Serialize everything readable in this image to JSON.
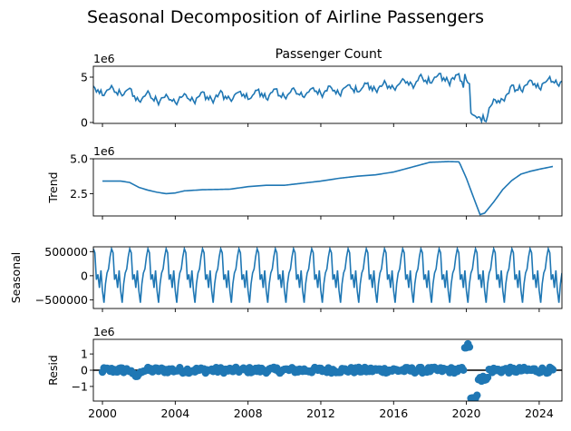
{
  "chart_data": {
    "type": "line",
    "title": "Seasonal Decomposition of Airline Passengers",
    "x_ticks": [
      "2000",
      "2004",
      "2008",
      "2012",
      "2016",
      "2020",
      "2024"
    ],
    "xlim": [
      1999.5,
      2025.25
    ],
    "color": "#1f77b4",
    "panels": [
      {
        "id": "observed",
        "title": "Passenger Count",
        "ylabel": "",
        "offset_text": "1e6",
        "ylim": [
          -0.1,
          6.2
        ],
        "y_ticks": [
          0,
          5
        ],
        "y_tick_labels": [
          "0",
          "5"
        ],
        "style": "line",
        "x_start": 1999.5,
        "x_end": 2025.25,
        "series": "observed"
      },
      {
        "id": "trend",
        "title": "",
        "ylabel": "Trend",
        "offset_text": "1e6",
        "ylim": [
          0.9,
          5.0
        ],
        "y_ticks": [
          2.5,
          5.0
        ],
        "y_tick_labels": [
          "2.5",
          "5.0"
        ],
        "style": "line",
        "x_start": 2000.0,
        "x_end": 2024.75,
        "series": "trend"
      },
      {
        "id": "seasonal",
        "title": "",
        "ylabel": "Seasonal",
        "offset_text": "",
        "ylim": [
          -680000,
          600000
        ],
        "y_ticks": [
          -500000,
          0,
          500000
        ],
        "y_tick_labels": [
          "−500000",
          "0",
          "500000"
        ],
        "style": "line",
        "x_start": 1999.5,
        "x_end": 2025.25,
        "series": "seasonal"
      },
      {
        "id": "resid",
        "title": "",
        "ylabel": "Resid",
        "offset_text": "1e6",
        "ylim": [
          -1.9,
          1.9
        ],
        "y_ticks": [
          -1,
          0,
          1
        ],
        "y_tick_labels": [
          "−1",
          "0",
          "1"
        ],
        "style": "scatter",
        "zero_line": true,
        "x_start": 2000.0,
        "x_end": 2024.75,
        "series": "resid"
      }
    ],
    "trend_knots": [
      [
        2000.0,
        3.4
      ],
      [
        2001.0,
        3.4
      ],
      [
        2001.5,
        3.3
      ],
      [
        2002.0,
        2.95
      ],
      [
        2002.5,
        2.75
      ],
      [
        2003.0,
        2.6
      ],
      [
        2003.5,
        2.5
      ],
      [
        2004.0,
        2.55
      ],
      [
        2004.5,
        2.7
      ],
      [
        2005.5,
        2.78
      ],
      [
        2007.0,
        2.82
      ],
      [
        2008.0,
        3.0
      ],
      [
        2009.0,
        3.1
      ],
      [
        2010.0,
        3.1
      ],
      [
        2011.0,
        3.25
      ],
      [
        2012.0,
        3.4
      ],
      [
        2013.0,
        3.6
      ],
      [
        2014.0,
        3.75
      ],
      [
        2015.0,
        3.85
      ],
      [
        2016.0,
        4.05
      ],
      [
        2017.0,
        4.4
      ],
      [
        2018.0,
        4.75
      ],
      [
        2019.0,
        4.8
      ],
      [
        2019.6,
        4.78
      ],
      [
        2020.0,
        3.6
      ],
      [
        2020.4,
        2.2
      ],
      [
        2020.75,
        1.0
      ],
      [
        2021.0,
        1.1
      ],
      [
        2021.5,
        1.9
      ],
      [
        2022.0,
        2.8
      ],
      [
        2022.5,
        3.45
      ],
      [
        2023.0,
        3.9
      ],
      [
        2023.5,
        4.1
      ],
      [
        2024.0,
        4.25
      ],
      [
        2024.75,
        4.45
      ]
    ],
    "seasonal_amplitude": 560000
  }
}
